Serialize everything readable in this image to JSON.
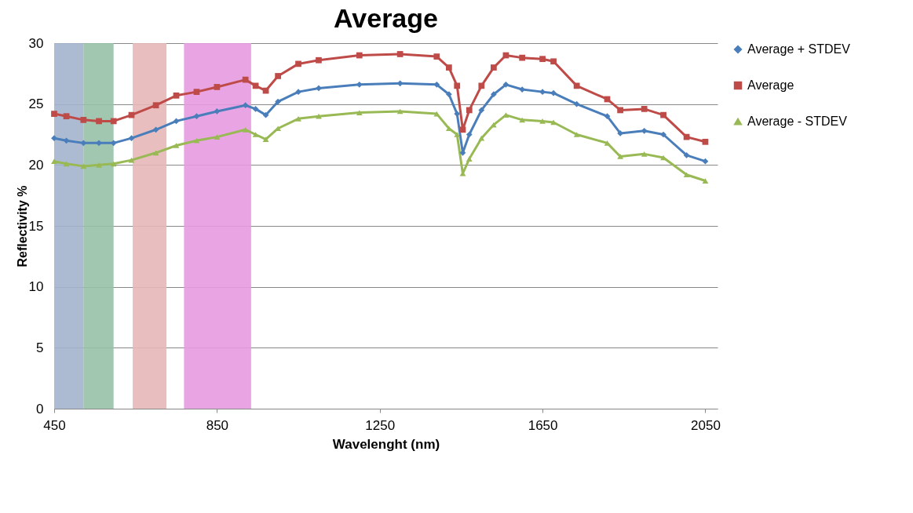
{
  "chart_data": {
    "type": "line",
    "title": "Average",
    "xlabel": "Wavelenght (nm)",
    "ylabel": "Reflectivity %",
    "x": [
      450,
      480,
      522,
      560,
      596,
      640,
      700,
      750,
      800,
      850,
      920,
      945,
      970,
      1000,
      1050,
      1100,
      1200,
      1300,
      1390,
      1420,
      1440,
      1454,
      1470,
      1500,
      1530,
      1560,
      1600,
      1650,
      1677,
      1734,
      1809,
      1841,
      1900,
      1947,
      2004,
      2050
    ],
    "series": [
      {
        "name": "Average + STDEV",
        "color": "#4a7ebb",
        "marker": "diamond",
        "values": [
          22.2,
          22.0,
          21.8,
          21.8,
          21.8,
          22.2,
          22.9,
          23.6,
          24.0,
          24.4,
          24.9,
          24.6,
          24.1,
          25.2,
          26.0,
          26.3,
          26.6,
          26.7,
          26.6,
          25.8,
          24.2,
          21.0,
          22.5,
          24.5,
          25.8,
          26.6,
          26.2,
          26.0,
          25.9,
          25.0,
          24.0,
          22.6,
          22.8,
          22.5,
          20.8,
          20.3
        ]
      },
      {
        "name": "Average",
        "color": "#be4b48",
        "marker": "square",
        "values": [
          24.2,
          24.0,
          23.7,
          23.6,
          23.6,
          24.1,
          24.9,
          25.7,
          26.0,
          26.4,
          27.0,
          26.5,
          26.1,
          27.3,
          28.3,
          28.6,
          29.0,
          29.1,
          28.9,
          28.0,
          26.5,
          22.9,
          24.5,
          26.5,
          28.0,
          29.0,
          28.8,
          28.7,
          28.5,
          26.5,
          25.4,
          24.5,
          24.6,
          24.1,
          22.3,
          21.9
        ]
      },
      {
        "name": "Average - STDEV",
        "color": "#98b954",
        "marker": "triangle",
        "values": [
          20.3,
          20.1,
          19.9,
          20.0,
          20.1,
          20.4,
          21.0,
          21.6,
          22.0,
          22.3,
          22.9,
          22.5,
          22.1,
          23.0,
          23.8,
          24.0,
          24.3,
          24.4,
          24.2,
          23.0,
          22.5,
          19.3,
          20.5,
          22.2,
          23.3,
          24.1,
          23.7,
          23.6,
          23.5,
          22.5,
          21.8,
          20.7,
          20.9,
          20.6,
          19.2,
          18.7
        ]
      }
    ],
    "bands": [
      {
        "axis": "x",
        "from": 450,
        "to": 522,
        "color": "#a3b4cc"
      },
      {
        "axis": "x",
        "from": 522,
        "to": 596,
        "color": "#97c1a8"
      },
      {
        "axis": "x",
        "from": 643,
        "to": 726,
        "color": "#e5b7b8"
      },
      {
        "axis": "x",
        "from": 769,
        "to": 934,
        "color": "#e79be0"
      }
    ],
    "xlim": [
      450,
      2080
    ],
    "xticks": [
      450,
      850,
      1250,
      1650,
      2050
    ],
    "ylim": [
      0,
      30
    ],
    "yticks": [
      0,
      5,
      10,
      15,
      20,
      25,
      30
    ],
    "grid": "y",
    "legend": "right",
    "line_style": "solid"
  }
}
